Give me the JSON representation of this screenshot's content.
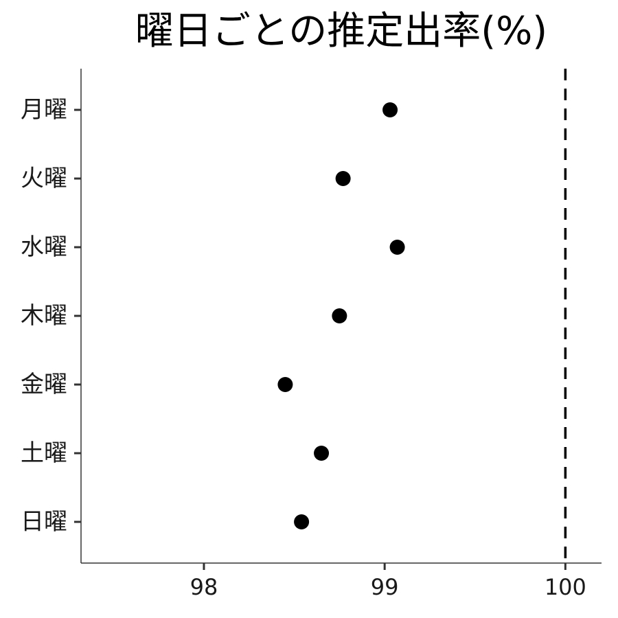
{
  "chart_data": {
    "type": "scatter",
    "title": "曜日ごとの推定出率(%)",
    "xlabel": "",
    "ylabel": "",
    "categories": [
      "月曜",
      "火曜",
      "水曜",
      "木曜",
      "金曜",
      "土曜",
      "日曜"
    ],
    "values": [
      99.03,
      98.77,
      99.07,
      98.75,
      98.45,
      98.65,
      98.54
    ],
    "xlim": [
      97.32,
      100.2
    ],
    "x_ticks": [
      98,
      99,
      100
    ],
    "x_tick_labels": [
      "98",
      "99",
      "100"
    ],
    "reference_line": {
      "x": 100,
      "style": "dashed"
    },
    "grid": false,
    "legend": "none",
    "colors": {
      "point": "#000000",
      "axis": "#333333",
      "reference_line": "#000000"
    }
  }
}
